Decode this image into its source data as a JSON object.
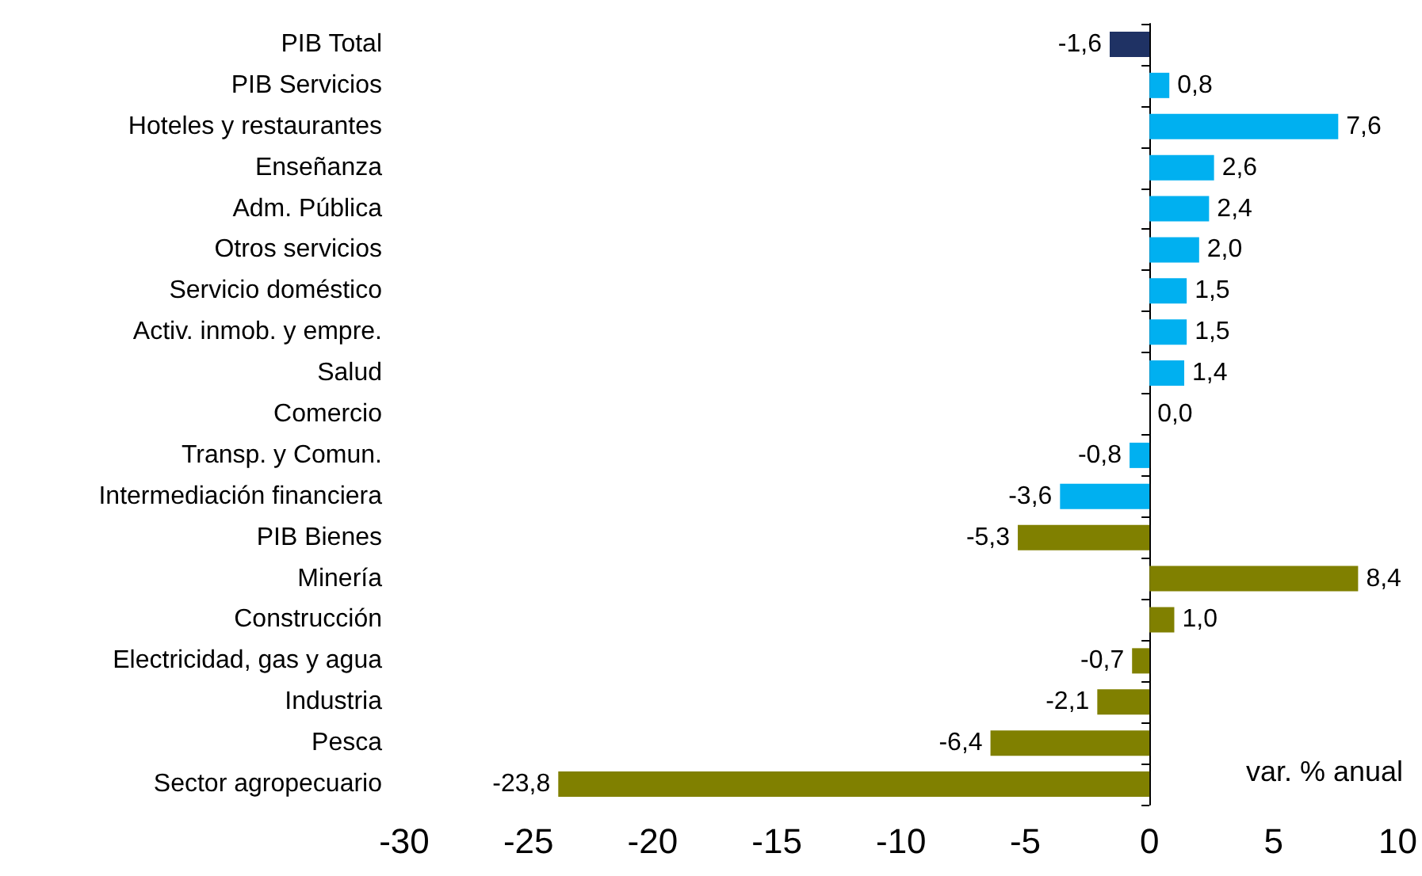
{
  "chart_data": {
    "type": "bar",
    "orientation": "horizontal",
    "categories": [
      "PIB Total",
      "PIB Servicios",
      "Hoteles y restaurantes",
      "Enseñanza",
      "Adm. Pública",
      "Otros servicios",
      "Servicio doméstico",
      "Activ. inmob. y empre.",
      "Salud",
      "Comercio",
      "Transp. y Comun.",
      "Intermediación financiera",
      "PIB Bienes",
      "Minería",
      "Construcción",
      "Electricidad, gas y agua",
      "Industria",
      "Pesca",
      "Sector agropecuario"
    ],
    "values": [
      -1.6,
      0.8,
      7.6,
      2.6,
      2.4,
      2.0,
      1.5,
      1.5,
      1.4,
      0.0,
      -0.8,
      -3.6,
      -5.3,
      8.4,
      1.0,
      -0.7,
      -2.1,
      -6.4,
      -23.8
    ],
    "value_labels": [
      "-1,6",
      "0,8",
      "7,6",
      "2,6",
      "2,4",
      "2,0",
      "1,5",
      "1,5",
      "1,4",
      "0,0",
      "-0,8",
      "-3,6",
      "-5,3",
      "8,4",
      "1,0",
      "-0,7",
      "-2,1",
      "-6,4",
      "-23,8"
    ],
    "colors": [
      "#1f3264",
      "#00b0f0",
      "#00b0f0",
      "#00b0f0",
      "#00b0f0",
      "#00b0f0",
      "#00b0f0",
      "#00b0f0",
      "#00b0f0",
      "#00b0f0",
      "#00b0f0",
      "#00b0f0",
      "#808000",
      "#808000",
      "#808000",
      "#808000",
      "#808000",
      "#808000",
      "#808000"
    ],
    "xlim": [
      -30,
      10
    ],
    "xticks": [
      -30,
      -25,
      -20,
      -15,
      -10,
      -5,
      0,
      5,
      10
    ],
    "annotations": [
      "var. % anual"
    ]
  }
}
